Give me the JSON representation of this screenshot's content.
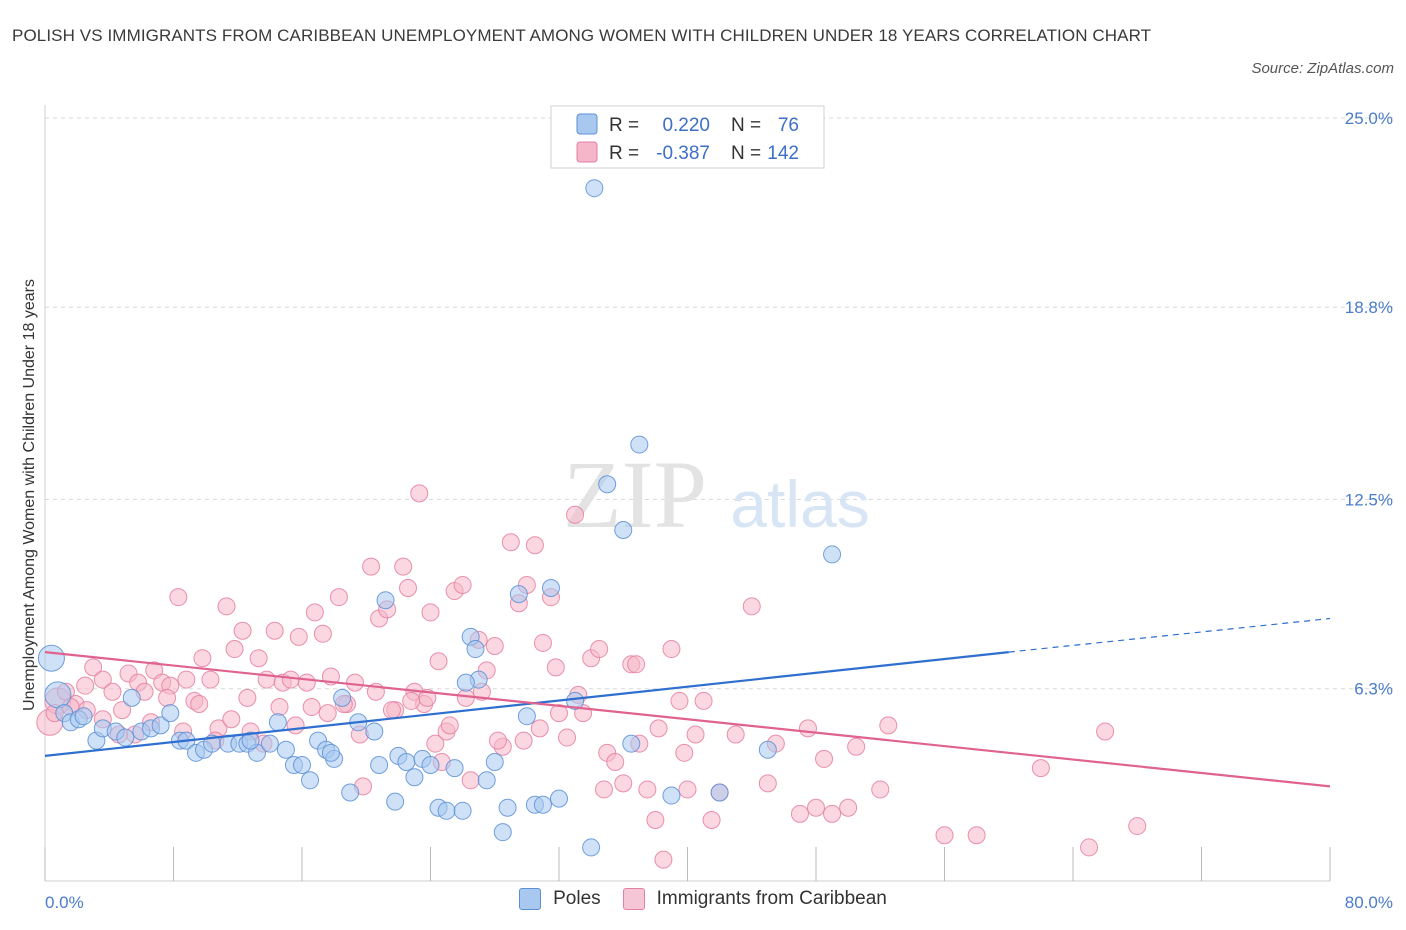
{
  "title": "POLISH VS IMMIGRANTS FROM CARIBBEAN UNEMPLOYMENT AMONG WOMEN WITH CHILDREN UNDER 18 YEARS CORRELATION CHART",
  "source": "Source: ZipAtlas.com",
  "watermark": {
    "zip": "ZIP",
    "atlas": "atlas"
  },
  "colors": {
    "poles_fill": "#a8c8f0",
    "poles_stroke": "#5b8fd6",
    "poles_line": "#2f6fcf",
    "carib_fill": "#f5b6c9",
    "carib_stroke": "#e57fa0",
    "carib_line": "#e0628f",
    "grid": "#d9d9d9",
    "axis_text": "#4a7cc9"
  },
  "legend_top": {
    "rows": [
      {
        "r_label": "R =",
        "r_value": "0.220",
        "n_label": "N =",
        "n_value": "76"
      },
      {
        "r_label": "R =",
        "r_value": "-0.387",
        "n_label": "N =",
        "n_value": "142"
      }
    ]
  },
  "legend_bottom": {
    "poles": "Poles",
    "carib": "Immigrants from Caribbean"
  },
  "chart_data": {
    "type": "scatter",
    "title": "POLISH VS IMMIGRANTS FROM CARIBBEAN UNEMPLOYMENT AMONG WOMEN WITH CHILDREN UNDER 18 YEARS CORRELATION CHART",
    "xlabel": "",
    "ylabel": "Unemployment Among Women with Children Under 18 years",
    "xlim": [
      0,
      80
    ],
    "ylim": [
      0,
      25
    ],
    "x_tick_labels": [
      "0.0%",
      "80.0%"
    ],
    "y_ticks": [
      6.3,
      12.5,
      18.8,
      25.0
    ],
    "y_tick_labels": [
      "6.3%",
      "12.5%",
      "18.8%",
      "25.0%"
    ],
    "grid": "horizontal dashed",
    "series": [
      {
        "name": "Poles",
        "r": 0.22,
        "n": 76,
        "trend": {
          "x0": 0,
          "y0": 4.1,
          "x1": 60,
          "y1": 7.5,
          "dashed_to_x": 80,
          "dashed_y1": 8.6
        },
        "points": [
          [
            0.4,
            7.3
          ],
          [
            0.8,
            6.1
          ],
          [
            1.2,
            5.5
          ],
          [
            1.6,
            5.2
          ],
          [
            2.1,
            5.3
          ],
          [
            2.4,
            5.4
          ],
          [
            3.2,
            4.6
          ],
          [
            3.6,
            5.0
          ],
          [
            4.4,
            4.9
          ],
          [
            5.0,
            4.7
          ],
          [
            5.4,
            6.0
          ],
          [
            6.0,
            4.9
          ],
          [
            6.6,
            5.0
          ],
          [
            7.2,
            5.1
          ],
          [
            7.8,
            5.5
          ],
          [
            8.4,
            4.6
          ],
          [
            8.8,
            4.6
          ],
          [
            9.4,
            4.2
          ],
          [
            9.9,
            4.3
          ],
          [
            10.4,
            4.5
          ],
          [
            11.4,
            4.5
          ],
          [
            12.1,
            4.5
          ],
          [
            12.6,
            4.5
          ],
          [
            13.2,
            4.2
          ],
          [
            14.0,
            4.5
          ],
          [
            14.5,
            5.2
          ],
          [
            15.0,
            4.3
          ],
          [
            15.5,
            3.8
          ],
          [
            16.0,
            3.8
          ],
          [
            16.5,
            3.3
          ],
          [
            17.0,
            4.6
          ],
          [
            17.5,
            4.3
          ],
          [
            18.0,
            4.0
          ],
          [
            18.5,
            6.0
          ],
          [
            19.0,
            2.9
          ],
          [
            19.5,
            5.2
          ],
          [
            20.5,
            4.9
          ],
          [
            20.8,
            3.8
          ],
          [
            21.2,
            9.2
          ],
          [
            21.8,
            2.6
          ],
          [
            22.0,
            4.1
          ],
          [
            22.5,
            3.9
          ],
          [
            23.0,
            3.4
          ],
          [
            23.5,
            4.0
          ],
          [
            24.0,
            3.8
          ],
          [
            24.5,
            2.4
          ],
          [
            25.0,
            2.3
          ],
          [
            25.5,
            3.7
          ],
          [
            26.0,
            2.3
          ],
          [
            26.5,
            8.0
          ],
          [
            26.8,
            7.6
          ],
          [
            27.0,
            6.6
          ],
          [
            27.5,
            3.3
          ],
          [
            28.0,
            3.9
          ],
          [
            28.5,
            1.6
          ],
          [
            28.8,
            2.4
          ],
          [
            29.5,
            9.4
          ],
          [
            30.0,
            5.4
          ],
          [
            30.5,
            2.5
          ],
          [
            31.0,
            2.5
          ],
          [
            31.5,
            9.6
          ],
          [
            32.0,
            2.7
          ],
          [
            33.0,
            5.9
          ],
          [
            34.0,
            1.1
          ],
          [
            35.0,
            13.0
          ],
          [
            36.0,
            11.5
          ],
          [
            37.0,
            14.3
          ],
          [
            39.0,
            2.8
          ],
          [
            42.0,
            2.9
          ],
          [
            45.0,
            4.3
          ],
          [
            49.0,
            10.7
          ],
          [
            36.5,
            4.5
          ],
          [
            26.2,
            6.5
          ],
          [
            12.8,
            4.6
          ],
          [
            17.8,
            4.2
          ],
          [
            34.2,
            22.7
          ]
        ]
      },
      {
        "name": "Immigrants from Caribbean",
        "r": -0.387,
        "n": 142,
        "trend": {
          "x0": 0,
          "y0": 7.5,
          "x1": 80,
          "y1": 3.1
        },
        "points": [
          [
            0.3,
            5.2
          ],
          [
            0.8,
            5.9
          ],
          [
            1.3,
            6.2
          ],
          [
            1.9,
            5.8
          ],
          [
            2.5,
            6.4
          ],
          [
            3.0,
            7.0
          ],
          [
            3.6,
            6.6
          ],
          [
            4.2,
            6.2
          ],
          [
            4.8,
            5.6
          ],
          [
            5.2,
            6.8
          ],
          [
            5.8,
            6.5
          ],
          [
            6.2,
            6.2
          ],
          [
            6.8,
            6.9
          ],
          [
            7.3,
            6.5
          ],
          [
            7.8,
            6.4
          ],
          [
            8.3,
            9.3
          ],
          [
            8.8,
            6.6
          ],
          [
            9.3,
            5.9
          ],
          [
            9.8,
            7.3
          ],
          [
            10.3,
            6.6
          ],
          [
            10.8,
            5.0
          ],
          [
            11.3,
            9.0
          ],
          [
            11.8,
            7.6
          ],
          [
            12.3,
            8.2
          ],
          [
            12.8,
            4.9
          ],
          [
            13.3,
            7.3
          ],
          [
            13.8,
            6.6
          ],
          [
            14.3,
            8.2
          ],
          [
            14.8,
            6.5
          ],
          [
            15.3,
            6.6
          ],
          [
            15.8,
            8.0
          ],
          [
            16.3,
            6.5
          ],
          [
            16.8,
            8.8
          ],
          [
            17.3,
            8.1
          ],
          [
            17.8,
            6.7
          ],
          [
            18.3,
            9.3
          ],
          [
            18.8,
            5.8
          ],
          [
            19.3,
            6.5
          ],
          [
            19.8,
            3.1
          ],
          [
            20.3,
            10.3
          ],
          [
            20.8,
            8.6
          ],
          [
            21.3,
            8.9
          ],
          [
            21.8,
            5.6
          ],
          [
            22.3,
            10.3
          ],
          [
            22.6,
            9.6
          ],
          [
            23.0,
            6.2
          ],
          [
            23.3,
            12.7
          ],
          [
            23.6,
            5.8
          ],
          [
            24.0,
            8.8
          ],
          [
            24.3,
            4.5
          ],
          [
            24.7,
            3.9
          ],
          [
            25.0,
            4.9
          ],
          [
            25.5,
            9.5
          ],
          [
            26.0,
            9.7
          ],
          [
            26.5,
            3.3
          ],
          [
            27.0,
            7.9
          ],
          [
            27.5,
            6.9
          ],
          [
            28.0,
            7.7
          ],
          [
            28.5,
            4.4
          ],
          [
            29.0,
            11.1
          ],
          [
            29.5,
            9.1
          ],
          [
            30.0,
            9.7
          ],
          [
            30.5,
            11.0
          ],
          [
            31.0,
            7.8
          ],
          [
            31.5,
            9.3
          ],
          [
            32.0,
            5.5
          ],
          [
            32.5,
            4.7
          ],
          [
            33.0,
            12.0
          ],
          [
            33.5,
            5.5
          ],
          [
            34.0,
            7.3
          ],
          [
            34.5,
            7.6
          ],
          [
            35.0,
            4.2
          ],
          [
            35.5,
            3.9
          ],
          [
            36.0,
            3.2
          ],
          [
            36.5,
            7.1
          ],
          [
            37.0,
            4.5
          ],
          [
            37.5,
            3.0
          ],
          [
            38.0,
            2.0
          ],
          [
            38.5,
            0.7
          ],
          [
            39.0,
            7.6
          ],
          [
            39.5,
            5.9
          ],
          [
            40.0,
            3.0
          ],
          [
            40.5,
            4.8
          ],
          [
            41.0,
            5.9
          ],
          [
            42.0,
            2.9
          ],
          [
            43.0,
            4.8
          ],
          [
            45.0,
            3.2
          ],
          [
            47.0,
            2.2
          ],
          [
            48.0,
            2.4
          ],
          [
            50.0,
            2.4
          ],
          [
            50.5,
            4.4
          ],
          [
            52.0,
            3.0
          ],
          [
            52.5,
            5.1
          ],
          [
            56.0,
            1.5
          ],
          [
            58.0,
            1.5
          ],
          [
            62.0,
            3.7
          ],
          [
            65.0,
            1.1
          ],
          [
            66.0,
            4.9
          ],
          [
            68.0,
            1.8
          ],
          [
            44.0,
            9.0
          ],
          [
            47.5,
            5.0
          ],
          [
            48.5,
            4.0
          ],
          [
            41.5,
            2.0
          ],
          [
            38.2,
            5.0
          ],
          [
            36.8,
            7.1
          ],
          [
            33.2,
            6.1
          ],
          [
            31.8,
            7.0
          ],
          [
            30.8,
            5.0
          ],
          [
            29.8,
            4.6
          ],
          [
            28.2,
            4.6
          ],
          [
            27.2,
            6.2
          ],
          [
            26.2,
            6.0
          ],
          [
            25.2,
            5.1
          ],
          [
            24.5,
            7.2
          ],
          [
            23.8,
            6.0
          ],
          [
            22.8,
            5.9
          ],
          [
            21.6,
            5.6
          ],
          [
            20.6,
            6.2
          ],
          [
            19.6,
            4.8
          ],
          [
            18.6,
            5.8
          ],
          [
            17.6,
            5.5
          ],
          [
            16.6,
            5.7
          ],
          [
            15.6,
            5.1
          ],
          [
            14.6,
            5.7
          ],
          [
            13.6,
            4.5
          ],
          [
            12.6,
            6.0
          ],
          [
            11.6,
            5.3
          ],
          [
            10.6,
            4.6
          ],
          [
            9.6,
            5.8
          ],
          [
            8.6,
            4.9
          ],
          [
            7.6,
            6.0
          ],
          [
            6.6,
            5.2
          ],
          [
            5.6,
            4.8
          ],
          [
            4.6,
            4.8
          ],
          [
            3.6,
            5.3
          ],
          [
            2.6,
            5.6
          ],
          [
            1.6,
            5.7
          ],
          [
            0.6,
            5.5
          ],
          [
            34.8,
            3.0
          ],
          [
            39.8,
            4.2
          ],
          [
            45.5,
            4.5
          ],
          [
            49.0,
            2.2
          ]
        ]
      }
    ]
  }
}
